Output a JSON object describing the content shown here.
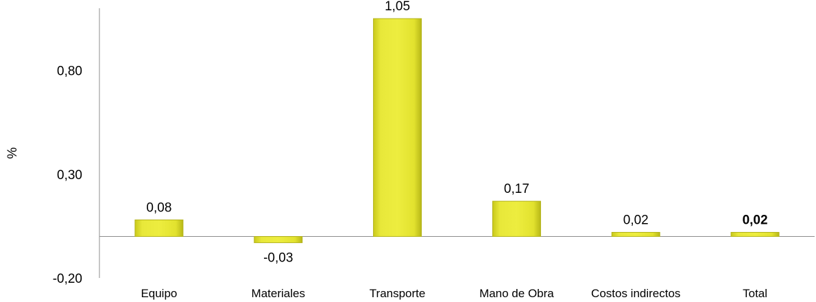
{
  "chart_data": {
    "type": "bar",
    "ylabel": "%",
    "ylim": [
      -0.2,
      1.1
    ],
    "yticks": [
      "0,80",
      "0,30",
      "-0,20"
    ],
    "ytick_values": [
      0.8,
      0.3,
      -0.2
    ],
    "categories": [
      "Equipo",
      "Materiales",
      "Transporte",
      "Mano de Obra",
      "Costos indirectos",
      "Total"
    ],
    "values": [
      0.08,
      -0.03,
      1.05,
      0.17,
      0.02,
      0.02
    ],
    "data_labels": [
      "0,08",
      "-0,03",
      "1,05",
      "0,17",
      "0,02",
      "0,02"
    ],
    "bold_labels": [
      false,
      false,
      false,
      false,
      false,
      true
    ],
    "bar_color": "#e6e62a",
    "bar_edge_color": "#b3b31a",
    "legend": "none",
    "grid": false
  }
}
